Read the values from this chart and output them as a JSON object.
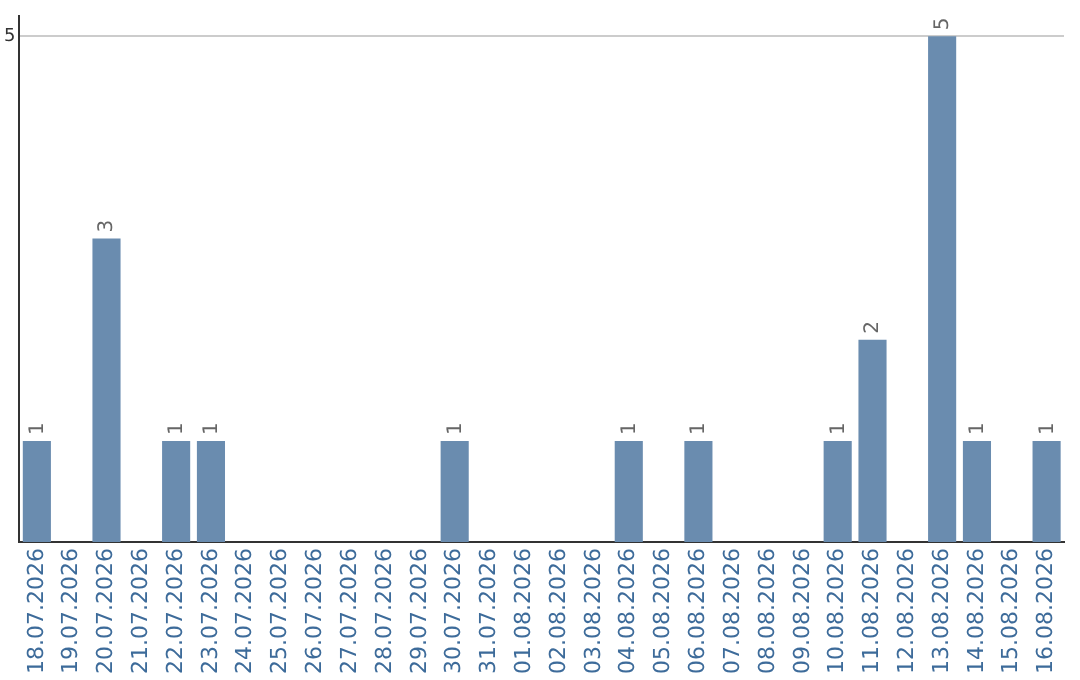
{
  "chart_data": {
    "type": "bar",
    "categories": [
      "18.07.2026",
      "19.07.2026",
      "20.07.2026",
      "21.07.2026",
      "22.07.2026",
      "23.07.2026",
      "24.07.2026",
      "25.07.2026",
      "26.07.2026",
      "27.07.2026",
      "28.07.2026",
      "29.07.2026",
      "30.07.2026",
      "31.07.2026",
      "01.08.2026",
      "02.08.2026",
      "03.08.2026",
      "04.08.2026",
      "05.08.2026",
      "06.08.2026",
      "07.08.2026",
      "08.08.2026",
      "09.08.2026",
      "10.08.2026",
      "11.08.2026",
      "12.08.2026",
      "13.08.2026",
      "14.08.2026",
      "15.08.2026",
      "16.08.2026"
    ],
    "values": [
      1,
      0,
      3,
      0,
      1,
      1,
      0,
      0,
      0,
      0,
      0,
      0,
      1,
      0,
      0,
      0,
      0,
      1,
      0,
      1,
      0,
      0,
      0,
      1,
      2,
      0,
      5,
      1,
      0,
      1
    ],
    "value_labels": [
      "1",
      null,
      "3",
      null,
      "1",
      "1",
      null,
      null,
      null,
      null,
      null,
      null,
      "1",
      null,
      null,
      null,
      null,
      "1",
      null,
      "1",
      null,
      null,
      null,
      "1",
      "2",
      null,
      "5",
      "1",
      null,
      "1"
    ],
    "color": "#6a8caf",
    "ylim": [
      0,
      5.2
    ],
    "yticks": [
      5
    ],
    "grid": "y",
    "legend": false
  }
}
